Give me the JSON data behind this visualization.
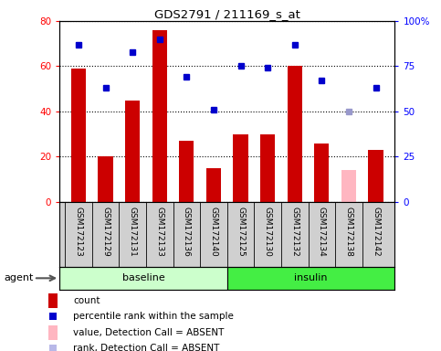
{
  "title": "GDS2791 / 211169_s_at",
  "samples": [
    "GSM172123",
    "GSM172129",
    "GSM172131",
    "GSM172133",
    "GSM172136",
    "GSM172140",
    "GSM172125",
    "GSM172130",
    "GSM172132",
    "GSM172134",
    "GSM172138",
    "GSM172142"
  ],
  "bar_values": [
    59,
    20,
    45,
    76,
    27,
    15,
    30,
    30,
    60,
    26,
    14,
    23
  ],
  "bar_colors": [
    "#cc0000",
    "#cc0000",
    "#cc0000",
    "#cc0000",
    "#cc0000",
    "#cc0000",
    "#cc0000",
    "#cc0000",
    "#cc0000",
    "#cc0000",
    "#ffb6c1",
    "#cc0000"
  ],
  "rank_values": [
    87,
    63,
    83,
    90,
    69,
    51,
    75,
    74,
    87,
    67,
    50,
    63
  ],
  "rank_absent": [
    false,
    false,
    false,
    false,
    false,
    false,
    false,
    false,
    false,
    false,
    true,
    false
  ],
  "ylim_left": [
    0,
    80
  ],
  "ylim_right": [
    0,
    100
  ],
  "yticks_left": [
    0,
    20,
    40,
    60,
    80
  ],
  "yticks_right": [
    0,
    25,
    50,
    75,
    100
  ],
  "ytick_labels_right": [
    "0",
    "25",
    "50",
    "75",
    "100%"
  ],
  "dot_color": "#0000cc",
  "absent_dot_color": "#9999cc",
  "absent_bar_color": "#ffb6c1",
  "baseline_color_light": "#ccffcc",
  "baseline_color": "#ccffcc",
  "insulin_color": "#44ee44",
  "sample_bg": "#d0d0d0",
  "plot_bg": "#ffffff",
  "bar_width": 0.55,
  "n_baseline": 6,
  "n_insulin": 6
}
